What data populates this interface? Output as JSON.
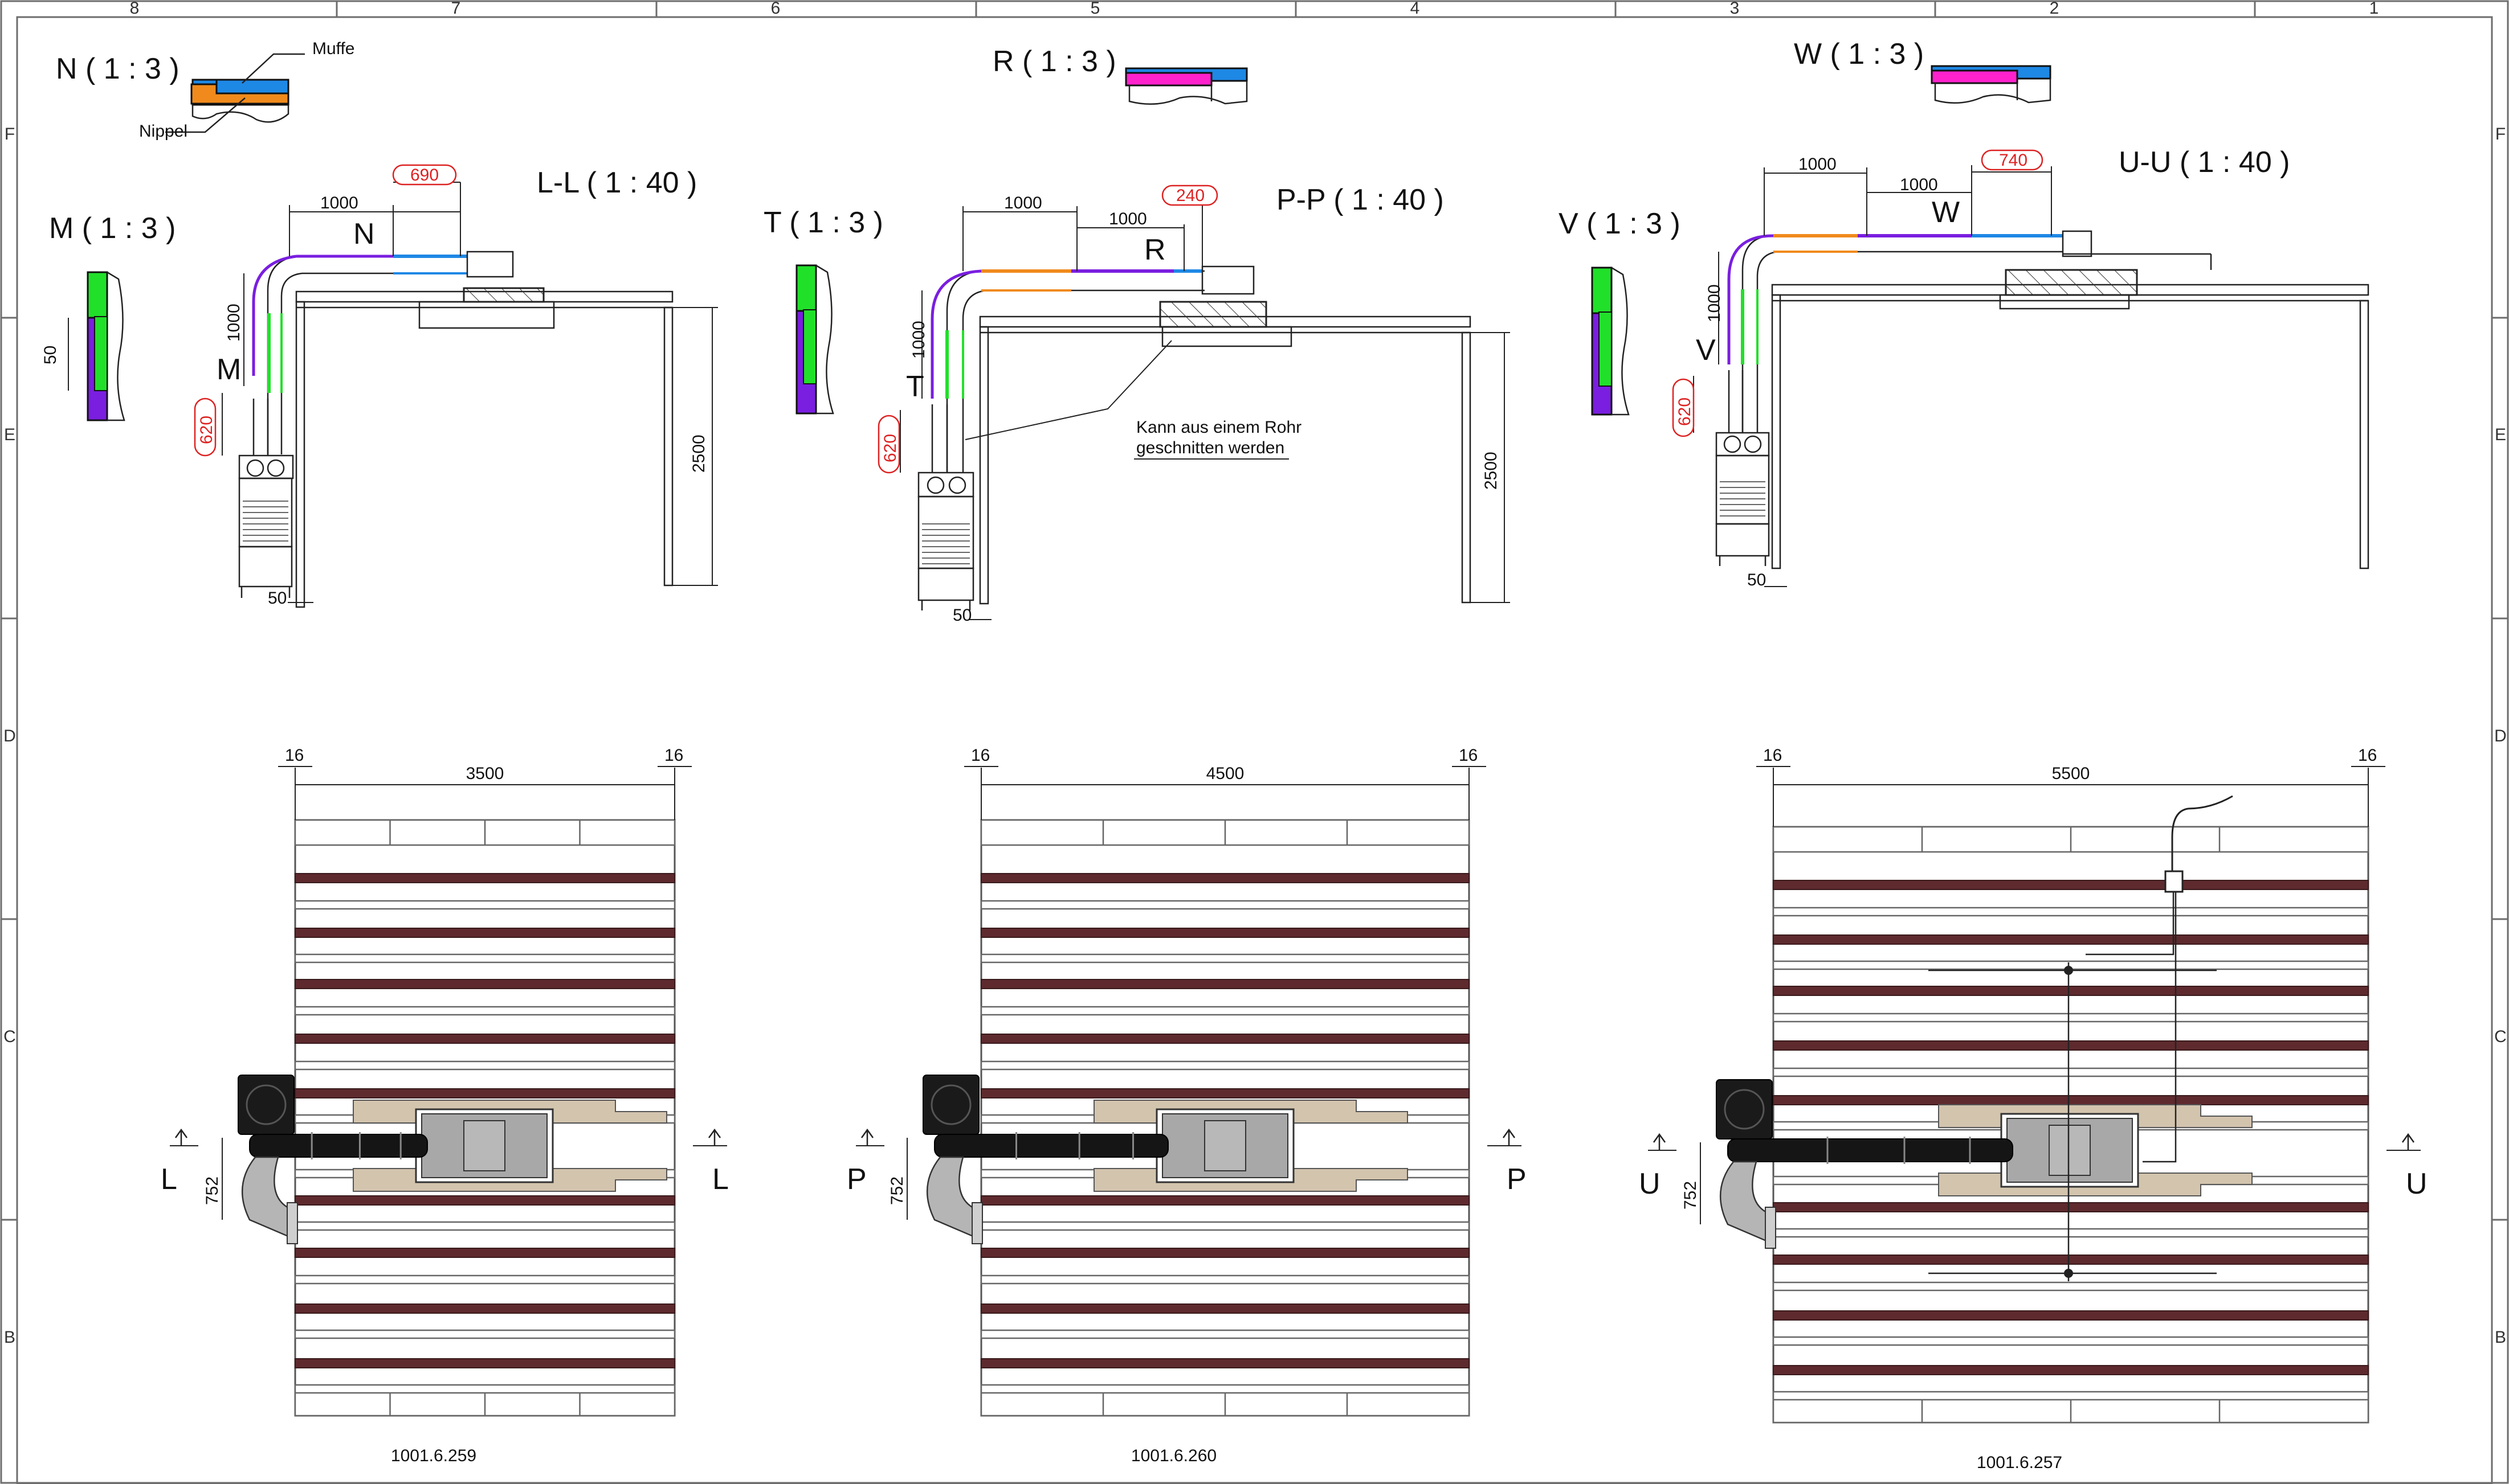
{
  "grid": {
    "columns": [
      "8",
      "7",
      "6",
      "5",
      "4",
      "3",
      "2",
      "1"
    ],
    "rows": [
      "F",
      "E",
      "D",
      "C",
      "B"
    ]
  },
  "details": {
    "N": {
      "title": "N ( 1 : 3 )",
      "muffe": "Muffe",
      "nippel": "Nippel"
    },
    "R": {
      "title": "R ( 1 : 3 )"
    },
    "W": {
      "title": "W ( 1 : 3 )"
    },
    "M": {
      "title": "M ( 1 : 3 )",
      "dim": "50"
    },
    "T": {
      "title": "T ( 1 : 3 )"
    },
    "V": {
      "title": "V ( 1 : 3 )"
    }
  },
  "sections": [
    {
      "title": "L-L ( 1 : 40 )",
      "dims": {
        "top1": "1000",
        "top2": "690",
        "vert": "1000",
        "red": "620",
        "height": "2500",
        "foot": "50"
      },
      "labels": {
        "a": "N",
        "b": "M"
      }
    },
    {
      "title": "P-P ( 1 : 40 )",
      "dims": {
        "top1": "1000",
        "top2": "1000",
        "red240": "240",
        "vert": "1000",
        "red": "620",
        "height": "2500",
        "foot": "50"
      },
      "labels": {
        "a": "R",
        "b": "T"
      },
      "note": [
        "Kann aus einem Rohr",
        "geschnitten werden"
      ]
    },
    {
      "title": "U-U ( 1 : 40 )",
      "dims": {
        "top1": "1000",
        "top2": "1000",
        "red740": "740",
        "vert": "1000",
        "red": "620",
        "foot": "50"
      },
      "labels": {
        "a": "W",
        "b": "V"
      }
    }
  ],
  "plans": [
    {
      "width": "3500",
      "edge_left": "16",
      "edge_right": "16",
      "offset": "752",
      "cut": "L",
      "code": "1001.6.259"
    },
    {
      "width": "4500",
      "edge_left": "16",
      "edge_right": "16",
      "offset": "752",
      "cut": "P",
      "code": "1001.6.260"
    },
    {
      "width": "5500",
      "edge_left": "16",
      "edge_right": "16",
      "offset": "752",
      "cut": "U",
      "code": "1001.6.257"
    }
  ],
  "colors": {
    "orange": "#f08a1c",
    "blue": "#1e88e5",
    "magenta": "#ff22cc",
    "green": "#21e02a",
    "purple": "#7a1ee0",
    "beam": "#5e2a2e",
    "tan": "#d3c4ae",
    "dimension_red": "#dd2222"
  }
}
